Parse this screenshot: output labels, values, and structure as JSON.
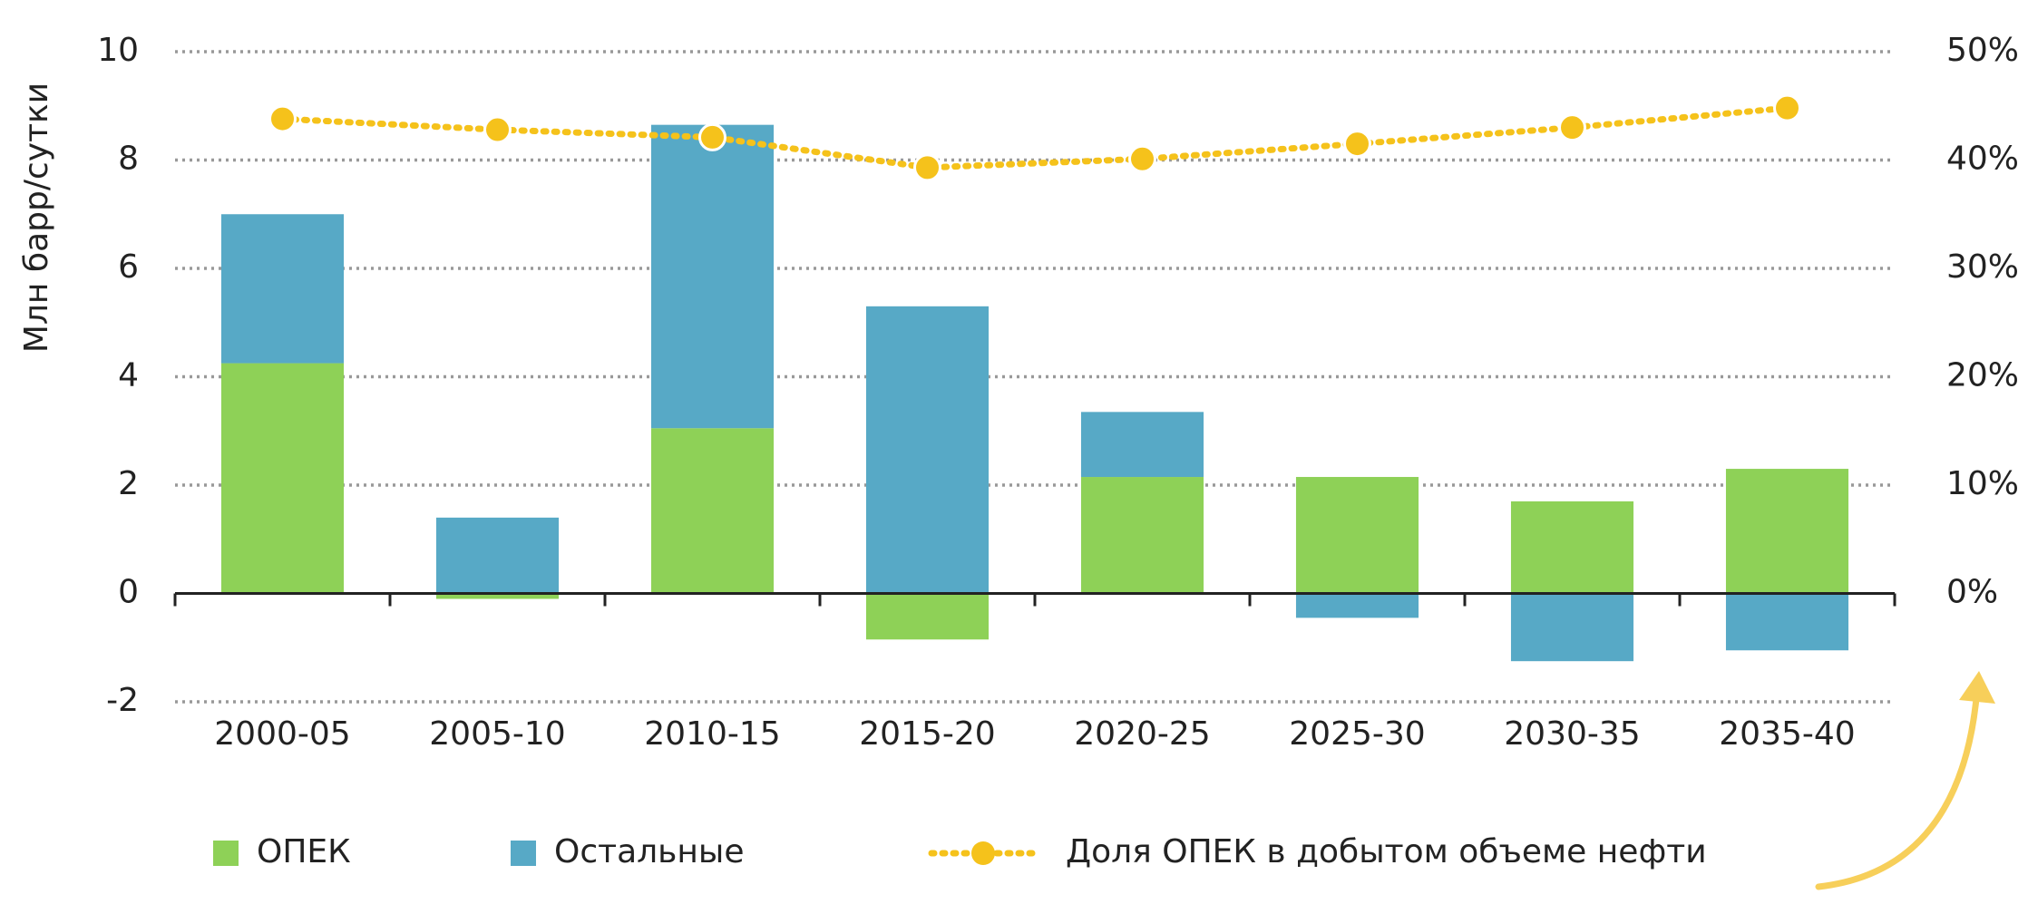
{
  "chart_data": {
    "type": "stacked_bar_line",
    "ylabel": "Млн барр/сутки",
    "categories": [
      "2000-05",
      "2005-10",
      "2010-15",
      "2015-20",
      "2020-25",
      "2025-30",
      "2030-35",
      "2035-40"
    ],
    "series": [
      {
        "name": "ОПЕК",
        "color": "#8ed157",
        "type": "bar",
        "values": [
          4.25,
          -0.1,
          3.05,
          -0.85,
          2.15,
          2.15,
          1.7,
          2.3
        ]
      },
      {
        "name": "Остальные",
        "color": "#57a9c6",
        "type": "bar",
        "values": [
          2.75,
          1.4,
          5.6,
          5.3,
          1.2,
          -0.45,
          -1.25,
          -1.05
        ]
      },
      {
        "name": "Доля ОПЕК в добытом объеме нефти",
        "color": "#f5c21b",
        "type": "line",
        "axis": "y2",
        "values": [
          43.8,
          42.8,
          42.1,
          39.3,
          40.1,
          41.5,
          43.0,
          44.8
        ]
      }
    ],
    "ylim": [
      -2,
      10
    ],
    "yticks": [
      -2,
      0,
      2,
      4,
      6,
      8,
      10
    ],
    "y2lim": [
      -10,
      50
    ],
    "y2ticks": [
      {
        "value": 0,
        "label": "0%"
      },
      {
        "value": 10,
        "label": "10%"
      },
      {
        "value": 20,
        "label": "20%"
      },
      {
        "value": 30,
        "label": "30%"
      },
      {
        "value": 40,
        "label": "40%"
      },
      {
        "value": 50,
        "label": "50%"
      }
    ],
    "grid": true,
    "legend": "bottom"
  }
}
